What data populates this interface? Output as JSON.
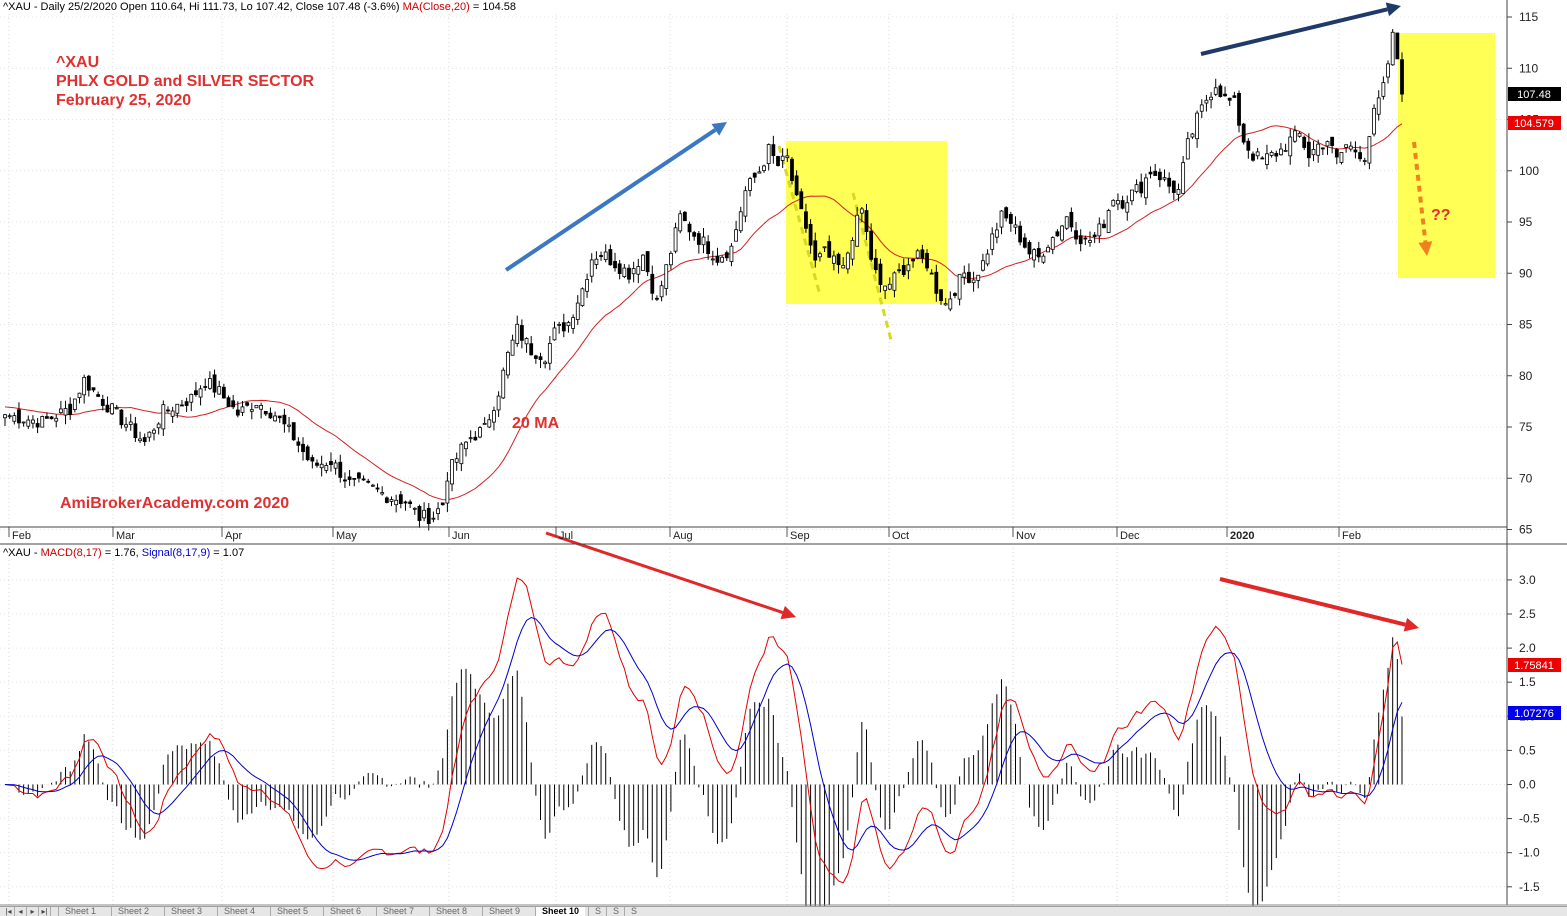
{
  "header": {
    "price": {
      "prefix": "^XAU - Daily 25/2/2020 Open 110.64, Hi 111.73, Lo 107.42, Close 107.48 (-3.6%) ",
      "ma_label": "MA(Close,20)",
      "ma_value": " = 104.58"
    },
    "macd": {
      "prefix": "^XAU - ",
      "macd_label": "MACD(8,17)",
      "macd_value": " = 1.76, ",
      "signal_label": "Signal(8,17,9)",
      "signal_value": " = 1.07"
    }
  },
  "annotations": {
    "title_line1": "^XAU",
    "title_line2": "PHLX GOLD and SILVER SECTOR",
    "title_line3": "February 25, 2020",
    "ma_label": "20 MA",
    "watermark": "AmiBrokerAcademy.com  2020",
    "question": "??"
  },
  "tabs": {
    "nav": [
      "|◂",
      "◂",
      "▸",
      "▸|"
    ],
    "sheets": [
      "Sheet 1",
      "Sheet 2",
      "Sheet 3",
      "Sheet 4",
      "Sheet 5",
      "Sheet 6",
      "Sheet 7",
      "Sheet 8",
      "Sheet 9",
      "Sheet 10",
      "S",
      "S",
      "S"
    ],
    "active_index": 9
  },
  "colors": {
    "ma": "#d42020",
    "macd": "#e00000",
    "signal": "#0000cc",
    "highlight": "#ffff55",
    "arrow_blue": "#3b78c4",
    "arrow_navy": "#1f3a68",
    "arrow_red": "#e02828",
    "arrow_orange": "#f08020",
    "close_badge": "#000000",
    "ma_badge": "#ee0000",
    "macd_badge": "#ee0000",
    "signal_badge": "#0000ee"
  },
  "chart_data": [
    {
      "type": "candlestick",
      "title": "^XAU",
      "x_tick_labels": [
        "Feb",
        "Mar",
        "Apr",
        "May",
        "Jun",
        "Jul",
        "Aug",
        "Sep",
        "Oct",
        "Nov",
        "Dec",
        "2020",
        "Feb"
      ],
      "y_ticks": [
        65,
        70,
        75,
        80,
        85,
        90,
        95,
        100,
        105,
        110,
        115
      ],
      "ylim": [
        64,
        116
      ],
      "series": [
        {
          "name": "MA(Close,20)",
          "last_value": 104.58
        },
        {
          "name": "Close",
          "last_value": 107.48
        }
      ],
      "last_values": {
        "close": "107.48",
        "ma": "104.579"
      },
      "close_keypoints": [
        [
          0,
          76.2
        ],
        [
          8,
          75.5
        ],
        [
          14,
          76.8
        ],
        [
          17,
          79.6
        ],
        [
          20,
          78.0
        ],
        [
          26,
          75.3
        ],
        [
          30,
          73.5
        ],
        [
          34,
          76.5
        ],
        [
          40,
          77.8
        ],
        [
          43,
          79.5
        ],
        [
          46,
          78.4
        ],
        [
          50,
          76.3
        ],
        [
          54,
          77.5
        ],
        [
          58,
          76.2
        ],
        [
          62,
          74.0
        ],
        [
          66,
          71.2
        ],
        [
          70,
          71.7
        ],
        [
          74,
          69.5
        ],
        [
          78,
          69.2
        ],
        [
          82,
          68.3
        ],
        [
          86,
          67.8
        ],
        [
          89,
          66.2
        ],
        [
          92,
          66.3
        ],
        [
          94,
          67.5
        ],
        [
          95,
          70.3
        ],
        [
          98,
          72.8
        ],
        [
          100,
          74.0
        ],
        [
          103,
          74.8
        ],
        [
          106,
          78.5
        ],
        [
          108,
          82.0
        ],
        [
          110,
          84.5
        ],
        [
          113,
          82.5
        ],
        [
          116,
          82.0
        ],
        [
          118,
          84.2
        ],
        [
          121,
          85.2
        ],
        [
          124,
          88.5
        ],
        [
          126,
          91.5
        ],
        [
          128,
          92.0
        ],
        [
          131,
          91.0
        ],
        [
          134,
          90.0
        ],
        [
          137,
          91.8
        ],
        [
          140,
          87.2
        ],
        [
          142,
          90.5
        ],
        [
          145,
          95.5
        ],
        [
          148,
          93.8
        ],
        [
          150,
          93.0
        ],
        [
          153,
          91.5
        ],
        [
          156,
          92.5
        ],
        [
          159,
          98.0
        ],
        [
          162,
          100.0
        ],
        [
          164,
          102.0
        ],
        [
          166,
          100.5
        ],
        [
          168,
          101.2
        ],
        [
          170,
          97.0
        ],
        [
          172,
          94.5
        ],
        [
          174,
          91.0
        ],
        [
          176,
          92.0
        ],
        [
          178,
          91.0
        ],
        [
          180,
          90.3
        ],
        [
          182,
          93.8
        ],
        [
          184,
          96.2
        ],
        [
          186,
          91.5
        ],
        [
          188,
          88.5
        ],
        [
          190,
          89.0
        ],
        [
          192,
          90.0
        ],
        [
          194,
          91.0
        ],
        [
          196,
          91.5
        ],
        [
          198,
          91.0
        ],
        [
          200,
          88.5
        ],
        [
          202,
          87.0
        ],
        [
          204,
          88.5
        ],
        [
          206,
          90.0
        ],
        [
          208,
          89.5
        ],
        [
          210,
          91.0
        ],
        [
          212,
          93.5
        ],
        [
          214,
          95.5
        ],
        [
          216,
          95.0
        ],
        [
          218,
          93.5
        ],
        [
          220,
          92.0
        ],
        [
          222,
          91.5
        ],
        [
          224,
          93.0
        ],
        [
          226,
          94.0
        ],
        [
          228,
          95.5
        ],
        [
          230,
          94.0
        ],
        [
          232,
          93.0
        ],
        [
          234,
          93.5
        ],
        [
          236,
          95.0
        ],
        [
          238,
          97.5
        ],
        [
          240,
          97.0
        ],
        [
          242,
          97.8
        ],
        [
          244,
          98.5
        ],
        [
          246,
          100.0
        ],
        [
          248,
          99.5
        ],
        [
          250,
          98.5
        ],
        [
          252,
          98.0
        ],
        [
          254,
          102.5
        ],
        [
          256,
          105.0
        ],
        [
          258,
          107.0
        ],
        [
          260,
          108.5
        ],
        [
          262,
          107.0
        ],
        [
          264,
          106.5
        ],
        [
          266,
          103.0
        ],
        [
          268,
          101.5
        ],
        [
          270,
          101.0
        ],
        [
          272,
          101.5
        ],
        [
          274,
          102.0
        ],
        [
          276,
          103.0
        ],
        [
          278,
          103.5
        ],
        [
          280,
          101.5
        ],
        [
          282,
          102.5
        ],
        [
          284,
          103.0
        ],
        [
          286,
          101.0
        ],
        [
          288,
          102.5
        ],
        [
          290,
          102.0
        ],
        [
          292,
          101.5
        ],
        [
          294,
          105.5
        ],
        [
          296,
          108.0
        ],
        [
          298,
          113.0
        ],
        [
          299,
          111.0
        ],
        [
          300,
          107.48
        ]
      ]
    },
    {
      "type": "line",
      "title": "MACD(8,17)",
      "y_ticks": [
        -1.5,
        -1.0,
        -0.5,
        0.0,
        0.5,
        1.0,
        1.5,
        2.0,
        2.5,
        3.0
      ],
      "ylim": [
        -1.8,
        3.4
      ],
      "series": [
        {
          "name": "MACD(8,17)",
          "last_value": 1.76
        },
        {
          "name": "Signal(8,17,9)",
          "last_value": 1.07
        }
      ],
      "last_values": {
        "macd": "1.75841",
        "signal": "1.07276"
      }
    }
  ]
}
